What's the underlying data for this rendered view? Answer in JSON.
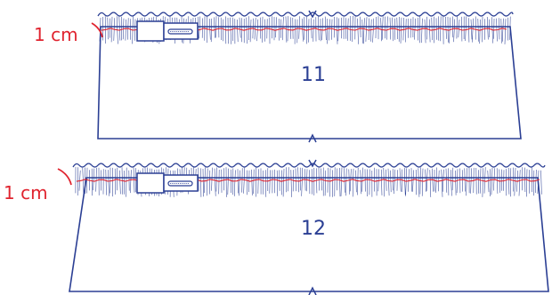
{
  "colors": {
    "outline": "#2b3f94",
    "gather_stitch": "#e0242f",
    "label": "#e0242f",
    "presser_foot_fill": "#ffffff",
    "background": "#ffffff"
  },
  "panels": [
    {
      "step_number": "11",
      "seam_allowance_label": "1 cm"
    },
    {
      "step_number": "12",
      "seam_allowance_label": "1 cm"
    }
  ],
  "icons": {
    "presser_foot": "sewing-machine-presser-foot-icon",
    "center_mark": "center-notch-icon"
  }
}
